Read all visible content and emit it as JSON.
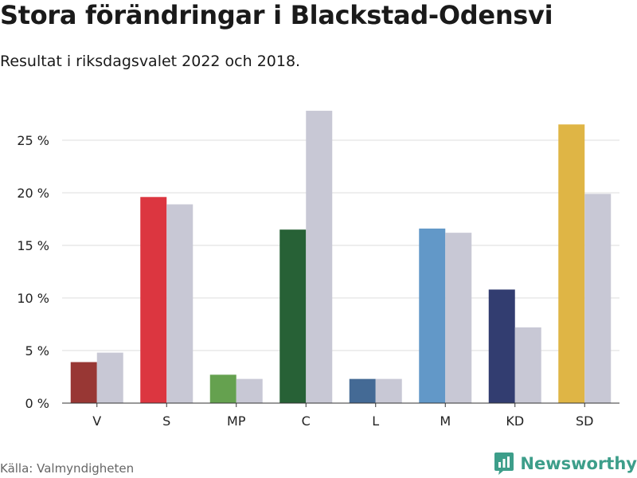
{
  "title": "Stora förändringar i Blackstad-Odensvi",
  "subtitle": "Resultat i riksdagsvalet 2022 och 2018.",
  "source": "Källa: Valmyndigheten",
  "brand": {
    "name": "Newsworthy",
    "icon": "bar-chart-icon",
    "color": "#3d9e8a"
  },
  "chart_data": {
    "type": "bar",
    "categories": [
      "V",
      "S",
      "MP",
      "C",
      "L",
      "M",
      "KD",
      "SD"
    ],
    "series": [
      {
        "values": [
          3.9,
          19.6,
          2.7,
          16.5,
          2.3,
          16.6,
          10.8,
          26.5
        ],
        "colors": [
          "#983734",
          "#dc3640",
          "#65a14f",
          "#276136",
          "#446a95",
          "#6298c8",
          "#323d70",
          "#dfb545"
        ]
      },
      {
        "values": [
          4.8,
          18.9,
          2.3,
          27.8,
          2.3,
          16.2,
          7.2,
          19.9
        ],
        "color": "#c8c8d5"
      }
    ],
    "y_ticks": [
      0,
      5,
      10,
      15,
      20,
      25
    ],
    "y_tick_labels": [
      "0 %",
      "5 %",
      "10 %",
      "15 %",
      "20 %",
      "25 %"
    ],
    "ylim": [
      0,
      28
    ],
    "grid": true,
    "legend": "none"
  }
}
